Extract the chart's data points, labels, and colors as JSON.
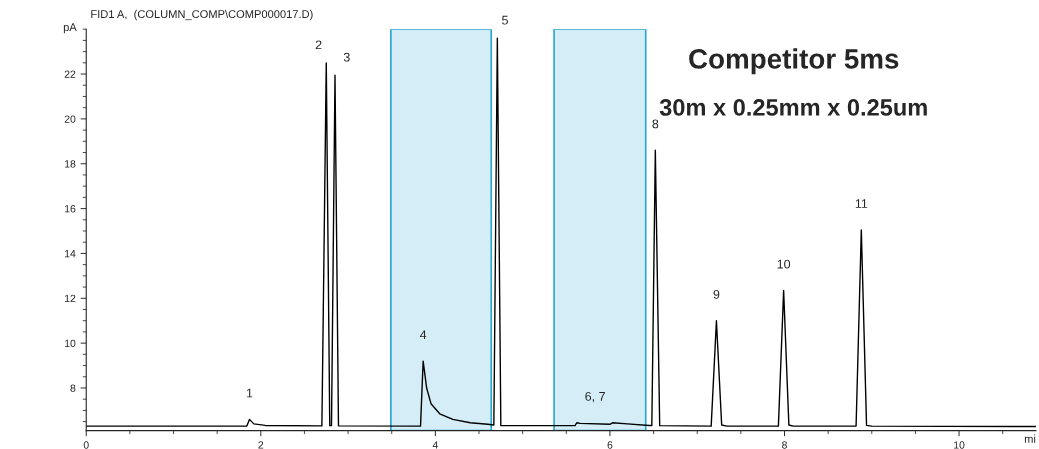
{
  "chart_data": {
    "type": "line",
    "title": "FID1 A,  (COLUMN_COMP\\COMP000017.D)",
    "xlabel": "mi",
    "ylabel": "pA",
    "series": [
      {
        "color": "#000000",
        "x": [
          0,
          1.84,
          1.87,
          1.92,
          2.05,
          2.7,
          2.75,
          2.79,
          2.81,
          2.85,
          2.89,
          3.83,
          3.86,
          3.9,
          3.95,
          4.05,
          4.2,
          4.4,
          4.6,
          4.67,
          4.71,
          4.75,
          5.6,
          5.62,
          5.66,
          6.0,
          6.03,
          6.2,
          6.45,
          6.48,
          6.52,
          6.57,
          7.16,
          7.22,
          7.28,
          7.34,
          7.93,
          7.99,
          8.05,
          8.1,
          8.82,
          8.88,
          8.94,
          9.0,
          10.88
        ],
        "values": [
          6.3,
          6.3,
          6.6,
          6.4,
          6.33,
          6.31,
          22.5,
          6.32,
          6.32,
          21.95,
          6.31,
          6.3,
          9.2,
          8.0,
          7.3,
          6.85,
          6.6,
          6.45,
          6.38,
          6.35,
          23.6,
          6.32,
          6.32,
          6.45,
          6.42,
          6.38,
          6.45,
          6.4,
          6.33,
          6.33,
          18.6,
          6.32,
          6.3,
          11.0,
          6.35,
          6.3,
          6.3,
          12.35,
          6.35,
          6.3,
          6.3,
          15.05,
          6.33,
          6.3,
          6.28
        ]
      }
    ],
    "xlim": [
      0,
      10.88
    ],
    "ylim": [
      6.1,
      24
    ],
    "xticks": [
      0,
      2,
      4,
      6,
      8,
      10
    ],
    "yticks": [
      8,
      10,
      12,
      14,
      16,
      18,
      20,
      22
    ],
    "grid": false,
    "legend": false,
    "marker": "none",
    "line_style": "solid",
    "bands": [
      {
        "axis": "x",
        "from": 3.49,
        "to": 4.64,
        "color": "#2aa6d4"
      },
      {
        "axis": "x",
        "from": 5.36,
        "to": 6.41,
        "color": "#2aa6d4"
      }
    ],
    "annotations": [
      {
        "text": "1",
        "x": 1.87,
        "y": 6.6
      },
      {
        "text": "2",
        "x": 2.75,
        "y": 22.5
      },
      {
        "text": "3",
        "x": 2.85,
        "y": 21.95
      },
      {
        "text": "4",
        "x": 3.86,
        "y": 9.2
      },
      {
        "text": "5",
        "x": 4.71,
        "y": 23.6
      },
      {
        "text": "6, 7",
        "x": 5.83,
        "y": 6.45
      },
      {
        "text": "8",
        "x": 6.52,
        "y": 18.6
      },
      {
        "text": "9",
        "x": 7.22,
        "y": 11.0
      },
      {
        "text": "10",
        "x": 7.99,
        "y": 12.35
      },
      {
        "text": "11",
        "x": 8.88,
        "y": 15.05
      },
      "Competitor 5ms",
      "30m x 0.25mm x 0.25um"
    ]
  }
}
